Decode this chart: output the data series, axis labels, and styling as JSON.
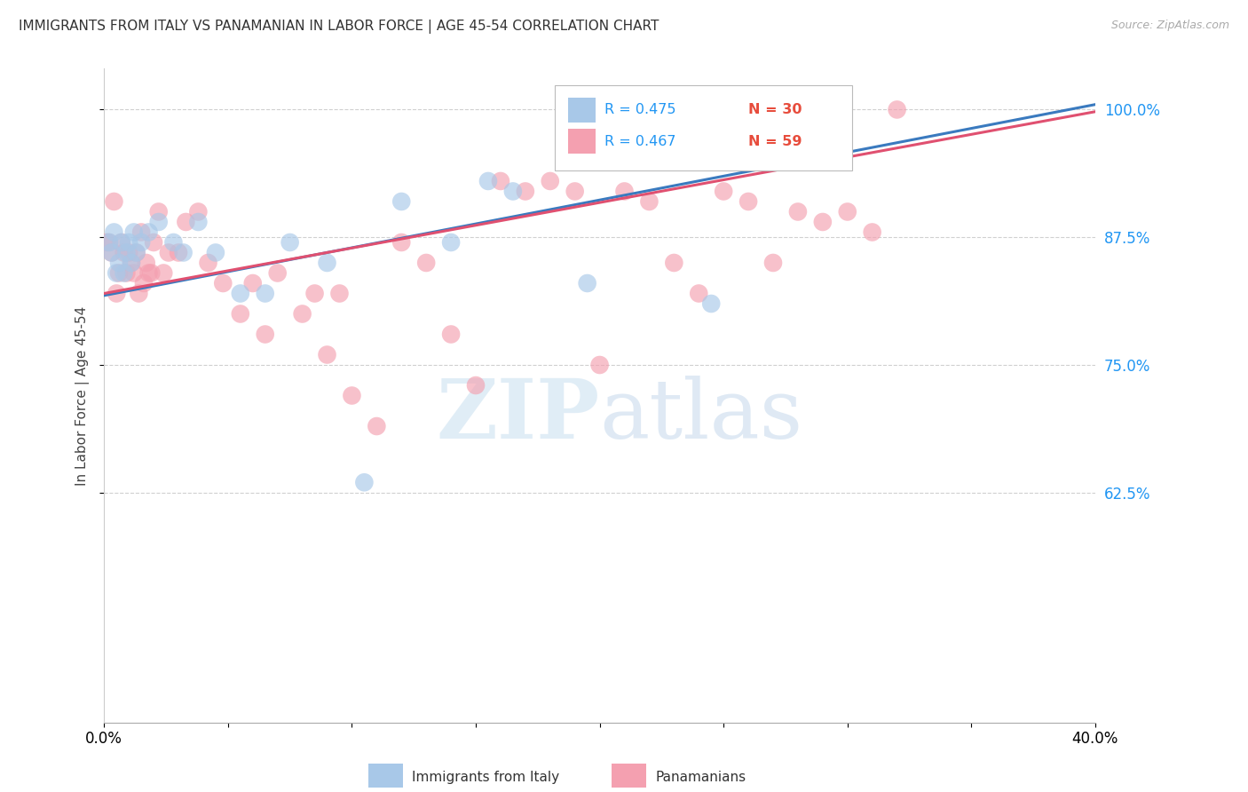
{
  "title": "IMMIGRANTS FROM ITALY VS PANAMANIAN IN LABOR FORCE | AGE 45-54 CORRELATION CHART",
  "source": "Source: ZipAtlas.com",
  "ylabel": "In Labor Force | Age 45-54",
  "xlim": [
    0.0,
    0.4
  ],
  "ylim": [
    0.4,
    1.04
  ],
  "xticks": [
    0.0,
    0.05,
    0.1,
    0.15,
    0.2,
    0.25,
    0.3,
    0.35,
    0.4
  ],
  "xticklabels": [
    "0.0%",
    "",
    "",
    "",
    "",
    "",
    "",
    "",
    "40.0%"
  ],
  "ytick_positions": [
    0.625,
    0.75,
    0.875,
    1.0
  ],
  "ytick_labels": [
    "62.5%",
    "75.0%",
    "87.5%",
    "100.0%"
  ],
  "legend_italy_r": "R = 0.475",
  "legend_italy_n": "N = 30",
  "legend_panama_r": "R = 0.467",
  "legend_panama_n": "N = 59",
  "color_italy": "#a8c8e8",
  "color_panama": "#f4a0b0",
  "color_italy_line": "#3a7abf",
  "color_panama_line": "#e05070",
  "legend_italy_label": "Immigrants from Italy",
  "legend_panama_label": "Panamanians",
  "italy_x": [
    0.002,
    0.003,
    0.004,
    0.005,
    0.006,
    0.007,
    0.008,
    0.009,
    0.01,
    0.011,
    0.012,
    0.013,
    0.015,
    0.018,
    0.022,
    0.028,
    0.032,
    0.038,
    0.045,
    0.055,
    0.065,
    0.075,
    0.09,
    0.105,
    0.12,
    0.14,
    0.155,
    0.165,
    0.195,
    0.245
  ],
  "italy_y": [
    0.87,
    0.86,
    0.88,
    0.84,
    0.85,
    0.87,
    0.84,
    0.86,
    0.87,
    0.85,
    0.88,
    0.86,
    0.87,
    0.88,
    0.89,
    0.87,
    0.86,
    0.89,
    0.86,
    0.82,
    0.82,
    0.87,
    0.85,
    0.635,
    0.91,
    0.87,
    0.93,
    0.92,
    0.83,
    0.81
  ],
  "panama_x": [
    0.001,
    0.002,
    0.003,
    0.004,
    0.005,
    0.006,
    0.007,
    0.008,
    0.009,
    0.01,
    0.011,
    0.012,
    0.013,
    0.014,
    0.015,
    0.016,
    0.017,
    0.018,
    0.019,
    0.02,
    0.022,
    0.024,
    0.026,
    0.03,
    0.033,
    0.038,
    0.042,
    0.048,
    0.055,
    0.06,
    0.065,
    0.07,
    0.08,
    0.085,
    0.09,
    0.095,
    0.1,
    0.11,
    0.12,
    0.13,
    0.14,
    0.15,
    0.16,
    0.17,
    0.18,
    0.19,
    0.2,
    0.21,
    0.22,
    0.23,
    0.24,
    0.25,
    0.26,
    0.27,
    0.28,
    0.29,
    0.3,
    0.31,
    0.32
  ],
  "panama_y": [
    0.87,
    0.87,
    0.86,
    0.91,
    0.82,
    0.84,
    0.87,
    0.86,
    0.84,
    0.86,
    0.85,
    0.84,
    0.86,
    0.82,
    0.88,
    0.83,
    0.85,
    0.84,
    0.84,
    0.87,
    0.9,
    0.84,
    0.86,
    0.86,
    0.89,
    0.9,
    0.85,
    0.83,
    0.8,
    0.83,
    0.78,
    0.84,
    0.8,
    0.82,
    0.76,
    0.82,
    0.72,
    0.69,
    0.87,
    0.85,
    0.78,
    0.73,
    0.93,
    0.92,
    0.93,
    0.92,
    0.75,
    0.92,
    0.91,
    0.85,
    0.82,
    0.92,
    0.91,
    0.85,
    0.9,
    0.89,
    0.9,
    0.88,
    1.0
  ],
  "watermark_zip": "ZIP",
  "watermark_atlas": "atlas",
  "background_color": "#ffffff",
  "grid_color": "#d0d0d0"
}
